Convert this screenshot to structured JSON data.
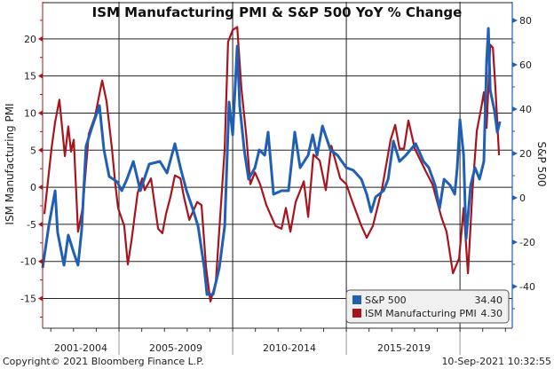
{
  "chart_data": {
    "type": "line",
    "title": "ISM Manufacturing PMI & S&P 500 YoY % Change",
    "ylabel_left": "ISM Manufacturing PMI",
    "ylabel_right": "S&P 500",
    "xlim": [
      2001.64,
      2022.3
    ],
    "ylim_left": [
      -19,
      25
    ],
    "ylim_right": [
      -58.8,
      88.4
    ],
    "yticks_left": [
      -15,
      -10,
      -5,
      0,
      5,
      10,
      15,
      20
    ],
    "yticks_right": [
      -40,
      -20,
      0,
      20,
      40,
      60,
      80
    ],
    "x_period_labels": [
      "2001-2004",
      "2005-2009",
      "2010-2014",
      "2015-2019"
    ],
    "x_period_boundaries": [
      2005,
      2010,
      2015,
      2020
    ],
    "grid": true,
    "legend_position": "bottom-right",
    "series": [
      {
        "name": "S&P 500",
        "axis": "right",
        "color": "#1f5fb4",
        "last_value": "34.40",
        "x": [
          2001.64,
          2001.91,
          2002.19,
          2002.3,
          2002.58,
          2002.77,
          2003.01,
          2003.2,
          2003.36,
          2003.55,
          2003.79,
          2004.14,
          2004.34,
          2004.57,
          2004.92,
          2005.12,
          2005.35,
          2005.63,
          2005.94,
          2006.33,
          2006.8,
          2007.11,
          2007.46,
          2007.7,
          2007.97,
          2008.24,
          2008.48,
          2008.75,
          2008.87,
          2009.14,
          2009.41,
          2009.65,
          2009.84,
          2010.0,
          2010.2,
          2010.31,
          2010.51,
          2010.7,
          2010.98,
          2011.17,
          2011.41,
          2011.56,
          2011.8,
          2012.15,
          2012.46,
          2012.73,
          2012.97,
          2013.32,
          2013.52,
          2013.71,
          2013.95,
          2014.3,
          2014.61,
          2015.0,
          2015.31,
          2015.66,
          2015.9,
          2016.09,
          2016.29,
          2016.64,
          2016.84,
          2017.07,
          2017.34,
          2017.62,
          2018.05,
          2018.4,
          2018.63,
          2018.91,
          2019.1,
          2019.3,
          2019.57,
          2019.77,
          2019.88,
          2020.0,
          2020.16,
          2020.27,
          2020.47,
          2020.66,
          2020.86,
          2021.05,
          2021.17,
          2021.25,
          2021.33,
          2021.52,
          2021.64,
          2021.76
        ],
        "y": [
          -31.6,
          -12.8,
          3.2,
          -15.6,
          -30.4,
          -16.8,
          -24.8,
          -30.4,
          -14.4,
          23.2,
          31.2,
          41.6,
          21.6,
          9.6,
          7.2,
          3.2,
          8.4,
          16.4,
          3.2,
          15.2,
          16.4,
          11.2,
          24.4,
          13.6,
          3.2,
          -4.8,
          -12.8,
          -31.6,
          -43.6,
          -43.6,
          -31.6,
          -12.8,
          43.2,
          28.4,
          68.4,
          41.6,
          21.6,
          8.4,
          13.6,
          21.6,
          19.2,
          29.6,
          1.6,
          3.2,
          3.2,
          29.6,
          13.6,
          19.2,
          28.4,
          19.2,
          32.4,
          21.6,
          19.2,
          13.6,
          12.4,
          8.4,
          1.6,
          -6.4,
          0.4,
          3.2,
          8.4,
          25.6,
          16.4,
          19.2,
          24.4,
          16.4,
          13.6,
          5.6,
          -4.8,
          8.4,
          5.6,
          1.6,
          13.6,
          35.2,
          19.2,
          -18.4,
          5.6,
          13.6,
          8.4,
          16.4,
          61.6,
          76.4,
          48.4,
          39.2,
          29.6,
          34.4
        ]
      },
      {
        "name": "ISM Manufacturing PMI",
        "axis": "left",
        "color": "#a8141e",
        "last_value": "4.30",
        "x": [
          2001.72,
          2002.03,
          2002.19,
          2002.38,
          2002.62,
          2002.77,
          2002.89,
          2003.01,
          2003.2,
          2003.4,
          2003.67,
          2003.95,
          2004.26,
          2004.45,
          2004.69,
          2004.84,
          2004.96,
          2005.23,
          2005.39,
          2005.55,
          2005.82,
          2006.02,
          2006.13,
          2006.41,
          2006.72,
          2006.91,
          2007.07,
          2007.27,
          2007.46,
          2007.7,
          2007.85,
          2008.09,
          2008.44,
          2008.63,
          2008.83,
          2009.02,
          2009.26,
          2009.45,
          2009.65,
          2009.8,
          2010.0,
          2010.2,
          2010.39,
          2010.59,
          2010.78,
          2010.98,
          2011.21,
          2011.48,
          2011.88,
          2012.15,
          2012.34,
          2012.54,
          2012.77,
          2013.13,
          2013.32,
          2013.55,
          2013.83,
          2014.1,
          2014.34,
          2014.73,
          2015.0,
          2015.27,
          2015.66,
          2015.9,
          2016.17,
          2016.56,
          2016.95,
          2017.15,
          2017.34,
          2017.54,
          2017.73,
          2018.01,
          2018.52,
          2018.79,
          2019.18,
          2019.41,
          2019.69,
          2019.96,
          2020.16,
          2020.35,
          2020.55,
          2020.74,
          2020.94,
          2021.05,
          2021.17,
          2021.33,
          2021.45,
          2021.56,
          2021.72
        ],
        "y": [
          -3.6,
          5.2,
          8.8,
          11.8,
          4.2,
          8.2,
          4.8,
          6.4,
          -6.0,
          -2.8,
          7.2,
          9.6,
          14.4,
          11.6,
          5.2,
          0.4,
          -2.8,
          -5.2,
          -10.4,
          -7.2,
          -0.8,
          1.2,
          -0.4,
          1.2,
          -5.6,
          -6.2,
          -3.6,
          -1.2,
          1.6,
          1.2,
          -1.2,
          -4.4,
          -2.0,
          -2.4,
          -10.8,
          -15.4,
          -12.8,
          -4.0,
          5.2,
          19.6,
          21.2,
          21.6,
          13.2,
          7.2,
          0.4,
          2.0,
          0.4,
          -2.4,
          -5.2,
          -5.6,
          -2.8,
          -6.0,
          -2.0,
          0.8,
          -4.0,
          4.4,
          3.6,
          -0.4,
          5.6,
          1.2,
          0.4,
          -2.0,
          -5.2,
          -6.8,
          -5.2,
          -0.4,
          6.4,
          8.4,
          5.2,
          5.2,
          9.0,
          5.2,
          2.0,
          0.4,
          -4.0,
          -6.0,
          -11.6,
          -9.6,
          -2.8,
          -11.6,
          -0.4,
          7.6,
          10.8,
          12.8,
          8.0,
          19.2,
          18.8,
          13.2,
          4.3
        ]
      }
    ]
  },
  "footer": {
    "copyright": "Copyright© 2021 Bloomberg Finance L.P.",
    "timestamp": "10-Sep-2021 10:32:55"
  }
}
